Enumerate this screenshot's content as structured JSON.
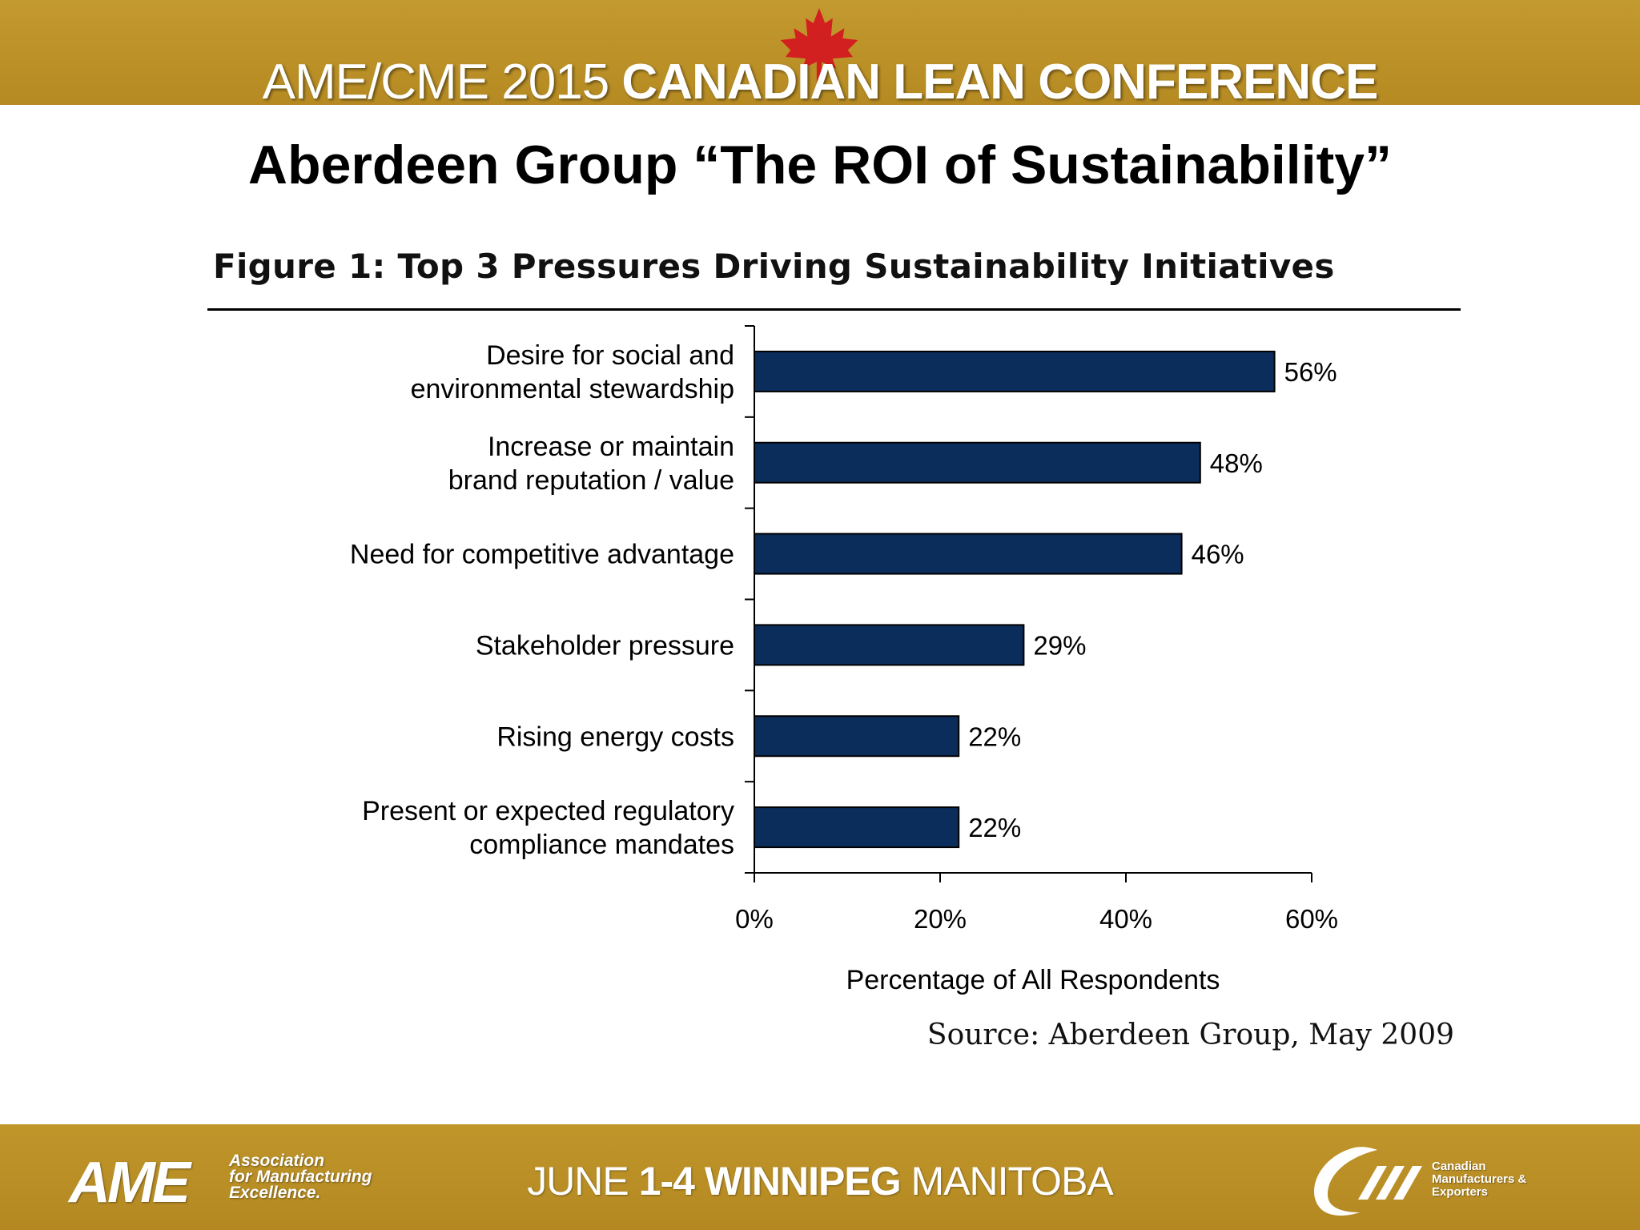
{
  "header": {
    "conference_light": "AME/CME 2015",
    "conference_bold": "CANADIAN LEAN CONFERENCE"
  },
  "slide_title": "Aberdeen Group “The ROI of Sustainability”",
  "colors": {
    "banner": "#b8891f",
    "bar": "#0b2d5b"
  },
  "icons": {
    "header_leaf": "maple-leaf-icon",
    "cme_swoosh": "cme-swoosh-icon"
  },
  "chart_data": {
    "type": "bar",
    "orientation": "horizontal",
    "title": "Figure 1: Top 3 Pressures Driving Sustainability Initiatives",
    "categories": [
      [
        "Desire for social and",
        "environmental stewardship"
      ],
      [
        "Increase or maintain",
        "brand reputation / value"
      ],
      [
        "Need for competitive advantage"
      ],
      [
        "Stakeholder pressure"
      ],
      [
        "Rising energy costs"
      ],
      [
        "Present or expected regulatory",
        "compliance mandates"
      ]
    ],
    "values": [
      56,
      48,
      46,
      29,
      22,
      22
    ],
    "value_labels": [
      "56%",
      "48%",
      "46%",
      "29%",
      "22%",
      "22%"
    ],
    "xlim": [
      0,
      60
    ],
    "xticks": [
      0,
      20,
      40,
      60
    ],
    "xtick_labels": [
      "0%",
      "20%",
      "40%",
      "60%"
    ],
    "xlabel": "Percentage of All Respondents",
    "ylabel": "",
    "grid": false,
    "source": "Source: Aberdeen Group, May 2009"
  },
  "footer": {
    "ame_logo": "AME",
    "ame_lines": [
      "Association",
      "for Manufacturing",
      "Excellence."
    ],
    "date_light_1": "JUNE",
    "date_bold": "1-4 WINNIPEG",
    "date_light_2": "MANITOBA",
    "cme_lines": [
      "Canadian",
      "Manufacturers &",
      "Exporters"
    ]
  }
}
